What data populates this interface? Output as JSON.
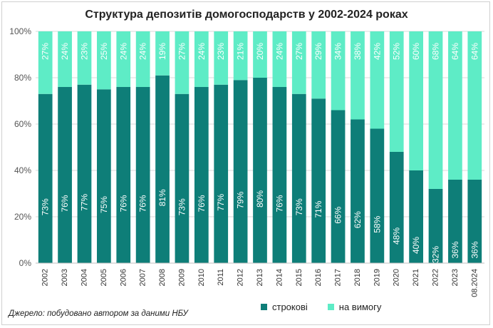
{
  "chart_data": {
    "type": "bar",
    "stacked": true,
    "title": "Структура депозитів домогосподарств у 2002-2024 роках",
    "categories": [
      "2002",
      "2003",
      "2004",
      "2005",
      "2006",
      "2007",
      "2008",
      "2009",
      "2010",
      "2011",
      "2012",
      "2013",
      "2014",
      "2015",
      "2016",
      "2017",
      "2018",
      "2019",
      "2020",
      "2021",
      "2022",
      "2023",
      "08.2024"
    ],
    "series": [
      {
        "name": "строкові",
        "color": "#0e7e78",
        "values": [
          73,
          76,
          77,
          75,
          76,
          76,
          81,
          73,
          76,
          77,
          79,
          80,
          76,
          73,
          71,
          66,
          62,
          58,
          48,
          40,
          32,
          36,
          36
        ],
        "labels": [
          "73%",
          "76%",
          "77%",
          "75%",
          "76%",
          "76%",
          "81%",
          "73%",
          "76%",
          "77%",
          "79%",
          "80%",
          "76%",
          "73%",
          "71%",
          "66%",
          "62%",
          "58%",
          "48%",
          "40%",
          "32%",
          "36%",
          "36%"
        ]
      },
      {
        "name": "на вимогу",
        "color": "#5eecc6",
        "values": [
          27,
          24,
          23,
          25,
          24,
          24,
          19,
          27,
          24,
          23,
          21,
          20,
          24,
          27,
          29,
          34,
          38,
          42,
          52,
          60,
          68,
          64,
          64
        ],
        "labels": [
          "27%",
          "24%",
          "23%",
          "25%",
          "24%",
          "24%",
          "19%",
          "27%",
          "24%",
          "23%",
          "21%",
          "20%",
          "24%",
          "27%",
          "29%",
          "34%",
          "38%",
          "42%",
          "52%",
          "60%",
          "68%",
          "64%",
          "64%"
        ]
      }
    ],
    "ylim": [
      0,
      100
    ],
    "yticks": [
      0,
      20,
      40,
      60,
      80,
      100
    ],
    "ytick_labels": [
      "0%",
      "20%",
      "40%",
      "60%",
      "80%",
      "100%"
    ],
    "legend_position": "bottom-right",
    "grid": true
  },
  "source_note": "Джерело: побудовано автором за даними НБУ"
}
